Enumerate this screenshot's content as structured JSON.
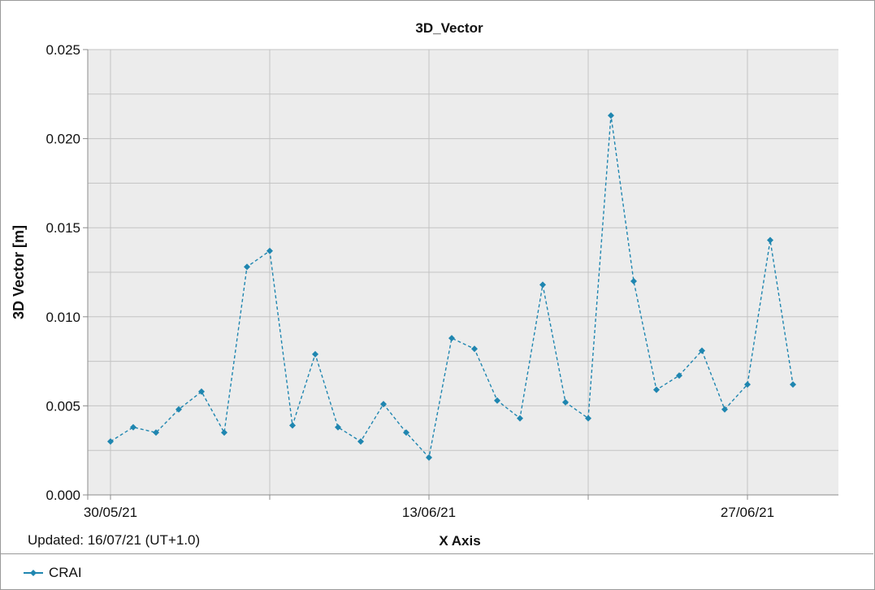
{
  "chart_data": {
    "type": "line",
    "title": "3D_Vector",
    "xlabel": "X Axis",
    "ylabel": "3D Vector [m]",
    "ylim": [
      0,
      0.025
    ],
    "yticks": [
      "0.000",
      "0.005",
      "0.010",
      "0.015",
      "0.020",
      "0.025"
    ],
    "xticks": [
      {
        "date": "2021-05-30",
        "label": "30/05/21"
      },
      {
        "date": "2021-06-13",
        "label": "13/06/21"
      },
      {
        "date": "2021-06-27",
        "label": "27/06/21"
      }
    ],
    "xlim": [
      "2021-05-29",
      "2021-07-01"
    ],
    "minor_grid_dates": [
      "2021-06-06",
      "2021-06-20"
    ],
    "grid": true,
    "legend_position": "bottom-left",
    "note": "Updated: 16/07/21 (UT+1.0)",
    "series": [
      {
        "name": "CRAI",
        "color": "#1f86b0",
        "line_style": "dashed",
        "marker": "diamond",
        "points": [
          {
            "x": "2021-05-30",
            "y": 0.003
          },
          {
            "x": "2021-05-31",
            "y": 0.0038
          },
          {
            "x": "2021-06-01",
            "y": 0.0035
          },
          {
            "x": "2021-06-02",
            "y": 0.0048
          },
          {
            "x": "2021-06-03",
            "y": 0.0058
          },
          {
            "x": "2021-06-04",
            "y": 0.0035
          },
          {
            "x": "2021-06-05",
            "y": 0.0128
          },
          {
            "x": "2021-06-06",
            "y": 0.0137
          },
          {
            "x": "2021-06-07",
            "y": 0.0039
          },
          {
            "x": "2021-06-08",
            "y": 0.0079
          },
          {
            "x": "2021-06-09",
            "y": 0.0038
          },
          {
            "x": "2021-06-10",
            "y": 0.003
          },
          {
            "x": "2021-06-11",
            "y": 0.0051
          },
          {
            "x": "2021-06-12",
            "y": 0.0035
          },
          {
            "x": "2021-06-13",
            "y": 0.0021
          },
          {
            "x": "2021-06-14",
            "y": 0.0088
          },
          {
            "x": "2021-06-15",
            "y": 0.0082
          },
          {
            "x": "2021-06-16",
            "y": 0.0053
          },
          {
            "x": "2021-06-17",
            "y": 0.0043
          },
          {
            "x": "2021-06-18",
            "y": 0.0118
          },
          {
            "x": "2021-06-19",
            "y": 0.0052
          },
          {
            "x": "2021-06-20",
            "y": 0.0043
          },
          {
            "x": "2021-06-21",
            "y": 0.0213
          },
          {
            "x": "2021-06-22",
            "y": 0.012
          },
          {
            "x": "2021-06-23",
            "y": 0.0059
          },
          {
            "x": "2021-06-24",
            "y": 0.0067
          },
          {
            "x": "2021-06-25",
            "y": 0.0081
          },
          {
            "x": "2021-06-26",
            "y": 0.0048
          },
          {
            "x": "2021-06-27",
            "y": 0.0062
          },
          {
            "x": "2021-06-28",
            "y": 0.0143
          },
          {
            "x": "2021-06-29",
            "y": 0.0062
          }
        ]
      }
    ]
  }
}
